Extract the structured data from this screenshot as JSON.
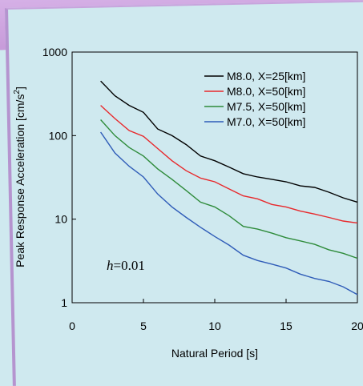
{
  "chart_data": {
    "type": "line",
    "xlabel": "Natural Period [s]",
    "ylabel": "Peak Response Acceleration [cm/s",
    "ylabel_sup": "2",
    "ylabel_end": "]",
    "xlim": [
      0,
      20
    ],
    "ylim": [
      1,
      1000
    ],
    "yscale": "log",
    "x_ticks": [
      "0",
      "5",
      "10",
      "15",
      "20"
    ],
    "y_ticks": [
      "1",
      "10",
      "100",
      "1000"
    ],
    "annotation_italic": "h",
    "annotation_rest": "=0.01",
    "legend_position": "top-right",
    "x": [
      2,
      3,
      4,
      5,
      6,
      7,
      8,
      9,
      10,
      11,
      12,
      13,
      14,
      15,
      16,
      17,
      18,
      19,
      20
    ],
    "series": [
      {
        "name": "M8.0, X=25[km]",
        "color": "#000000",
        "values": [
          450,
          300,
          230,
          190,
          120,
          100,
          78,
          57,
          50,
          42,
          35,
          32,
          30,
          28,
          25,
          24,
          21,
          18,
          16
        ]
      },
      {
        "name": "M8.0, X=50[km]",
        "color": "#e8282b",
        "values": [
          230,
          160,
          115,
          98,
          70,
          50,
          38,
          31,
          28,
          23,
          19,
          17.5,
          15,
          14,
          12.5,
          11.5,
          10.5,
          9.5,
          9
        ]
      },
      {
        "name": "M7.5, X=50[km]",
        "color": "#2e8b3a",
        "values": [
          155,
          100,
          72,
          57,
          40,
          30,
          22,
          16,
          14,
          11,
          8.2,
          7.6,
          6.8,
          6,
          5.5,
          5,
          4.3,
          3.9,
          3.4
        ]
      },
      {
        "name": "M7.0, X=50[km]",
        "color": "#2f5cb8",
        "values": [
          110,
          62,
          43,
          32,
          20,
          14,
          10.5,
          8,
          6.2,
          4.9,
          3.7,
          3.2,
          2.9,
          2.6,
          2.2,
          1.95,
          1.8,
          1.55,
          1.25
        ]
      }
    ]
  }
}
